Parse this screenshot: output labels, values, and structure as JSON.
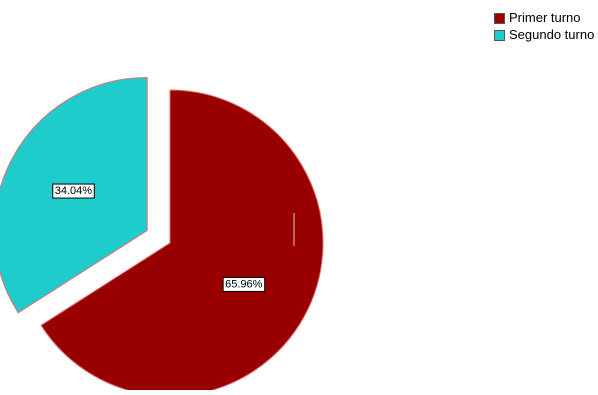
{
  "chart_data": {
    "type": "pie",
    "title": "",
    "slices": [
      {
        "label": "Primer turno",
        "value": 65.96,
        "data_label": "65.96%",
        "color": "#990000",
        "exploded": false
      },
      {
        "label": "Segundo turno",
        "value": 34.04,
        "data_label": "34.04%",
        "color": "#1fcccc",
        "exploded": true
      }
    ],
    "legend": {
      "placement": "top-right",
      "entries": [
        "Primer turno",
        "Segundo turno"
      ]
    },
    "start": "12 o'clock",
    "direction": "clockwise",
    "slice_border_color": "#e07070"
  }
}
